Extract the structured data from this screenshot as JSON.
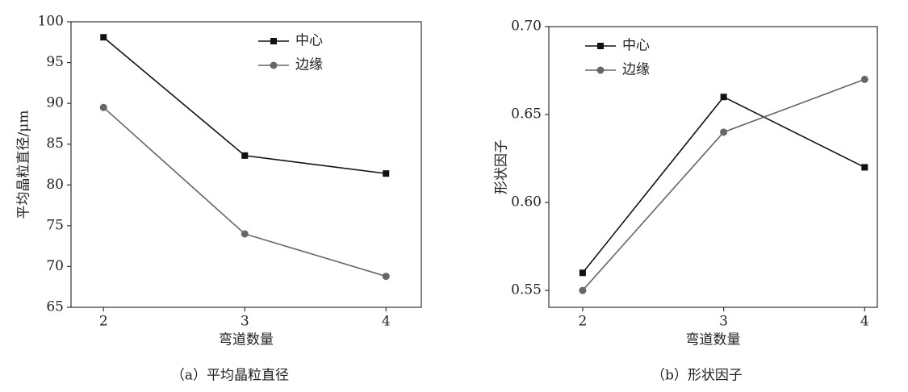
{
  "chart_data": [
    {
      "type": "line",
      "xlabel": "弯道数量",
      "ylabel": "平均晶粒直径/μm",
      "caption": "（a）平均晶粒直径",
      "x": [
        2,
        3,
        4
      ],
      "xlim": [
        1.77,
        4.25
      ],
      "xticks": [
        2,
        3,
        4
      ],
      "ylim": [
        65,
        100
      ],
      "yticks": [
        65,
        70,
        75,
        80,
        85,
        90,
        95,
        100
      ],
      "legend": "upper center",
      "series": [
        {
          "name": "中心",
          "color": "#111111",
          "marker": "square",
          "values": [
            98.1,
            83.6,
            81.4
          ]
        },
        {
          "name": "边缘",
          "color": "#666666",
          "marker": "circle",
          "values": [
            89.5,
            74.0,
            68.8
          ]
        }
      ]
    },
    {
      "type": "line",
      "xlabel": "弯道数量",
      "ylabel": "形状因子",
      "caption": "（b）形状因子",
      "x": [
        2,
        3,
        4
      ],
      "xlim": [
        1.76,
        4.09
      ],
      "xticks": [
        2,
        3,
        4
      ],
      "ylim": [
        0.5404,
        0.7
      ],
      "yticks": [
        {
          "value": 0.55,
          "label": "0.55"
        },
        {
          "value": 0.6,
          "label": "0.60"
        },
        0.65,
        {
          "value": 0.7,
          "label": "0.70"
        }
      ],
      "legend": "upper left",
      "series": [
        {
          "name": "中心",
          "color": "#111111",
          "marker": "square",
          "values": [
            0.56,
            0.66,
            0.62
          ]
        },
        {
          "name": "边缘",
          "color": "#666666",
          "marker": "circle",
          "values": [
            0.55,
            0.64,
            0.67
          ]
        }
      ]
    }
  ]
}
